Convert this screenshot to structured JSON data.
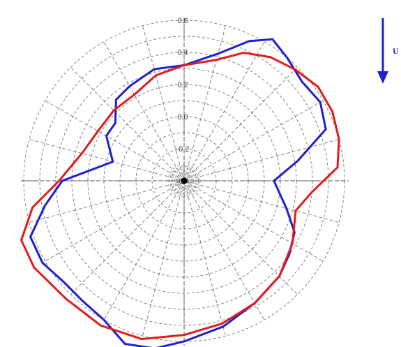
{
  "chart_data": {
    "type": "polar-line",
    "radial_ticks": [
      "-0.4",
      "-0.2",
      "0.0",
      "0.2",
      "0.4",
      "0.6"
    ],
    "radial_range": [
      -0.4,
      0.6
    ],
    "angular_step_deg": 15,
    "grid": true,
    "angle_convention": "degrees clockwise from top",
    "series": [
      {
        "color": "#1f1fd0",
        "points": [
          {
            "angle": 0,
            "r": 0.32
          },
          {
            "angle": 15,
            "r": 0.42
          },
          {
            "angle": 25,
            "r": 0.56
          },
          {
            "angle": 32,
            "r": 0.64
          },
          {
            "angle": 40,
            "r": 0.6
          },
          {
            "angle": 50,
            "r": 0.56
          },
          {
            "angle": 60,
            "r": 0.58
          },
          {
            "angle": 70,
            "r": 0.54
          },
          {
            "angle": 80,
            "r": 0.32
          },
          {
            "angle": 90,
            "r": 0.16
          },
          {
            "angle": 105,
            "r": 0.26
          },
          {
            "angle": 115,
            "r": 0.36
          },
          {
            "angle": 125,
            "r": 0.4
          },
          {
            "angle": 135,
            "r": 0.44
          },
          {
            "angle": 150,
            "r": 0.48
          },
          {
            "angle": 165,
            "r": 0.54
          },
          {
            "angle": 180,
            "r": 0.6
          },
          {
            "angle": 190,
            "r": 0.66
          },
          {
            "angle": 200,
            "r": 0.68
          },
          {
            "angle": 210,
            "r": 0.6
          },
          {
            "angle": 220,
            "r": 0.58
          },
          {
            "angle": 230,
            "r": 0.58
          },
          {
            "angle": 240,
            "r": 0.62
          },
          {
            "angle": 250,
            "r": 0.62
          },
          {
            "angle": 260,
            "r": 0.48
          },
          {
            "angle": 270,
            "r": 0.36
          },
          {
            "angle": 285,
            "r": 0.06
          },
          {
            "angle": 300,
            "r": 0.16
          },
          {
            "angle": 310,
            "r": 0.16
          },
          {
            "angle": 320,
            "r": 0.26
          },
          {
            "angle": 330,
            "r": 0.28
          },
          {
            "angle": 345,
            "r": 0.32
          }
        ]
      },
      {
        "color": "#e21b1b",
        "points": [
          {
            "angle": 0,
            "r": 0.32
          },
          {
            "angle": 15,
            "r": 0.38
          },
          {
            "angle": 25,
            "r": 0.48
          },
          {
            "angle": 35,
            "r": 0.54
          },
          {
            "angle": 45,
            "r": 0.58
          },
          {
            "angle": 55,
            "r": 0.62
          },
          {
            "angle": 65,
            "r": 0.62
          },
          {
            "angle": 75,
            "r": 0.6
          },
          {
            "angle": 85,
            "r": 0.56
          },
          {
            "angle": 95,
            "r": 0.4
          },
          {
            "angle": 105,
            "r": 0.32
          },
          {
            "angle": 120,
            "r": 0.38
          },
          {
            "angle": 135,
            "r": 0.44
          },
          {
            "angle": 150,
            "r": 0.48
          },
          {
            "angle": 165,
            "r": 0.52
          },
          {
            "angle": 180,
            "r": 0.56
          },
          {
            "angle": 195,
            "r": 0.62
          },
          {
            "angle": 210,
            "r": 0.64
          },
          {
            "angle": 225,
            "r": 0.64
          },
          {
            "angle": 240,
            "r": 0.68
          },
          {
            "angle": 250,
            "r": 0.68
          },
          {
            "angle": 260,
            "r": 0.56
          },
          {
            "angle": 270,
            "r": 0.38
          },
          {
            "angle": 285,
            "r": 0.26
          },
          {
            "angle": 300,
            "r": 0.22
          },
          {
            "angle": 315,
            "r": 0.22
          },
          {
            "angle": 330,
            "r": 0.22
          },
          {
            "angle": 345,
            "r": 0.28
          }
        ]
      }
    ]
  },
  "flow_indicator": {
    "label": "U",
    "color": "#1f1fd0",
    "icon": "arrow-down-icon"
  }
}
